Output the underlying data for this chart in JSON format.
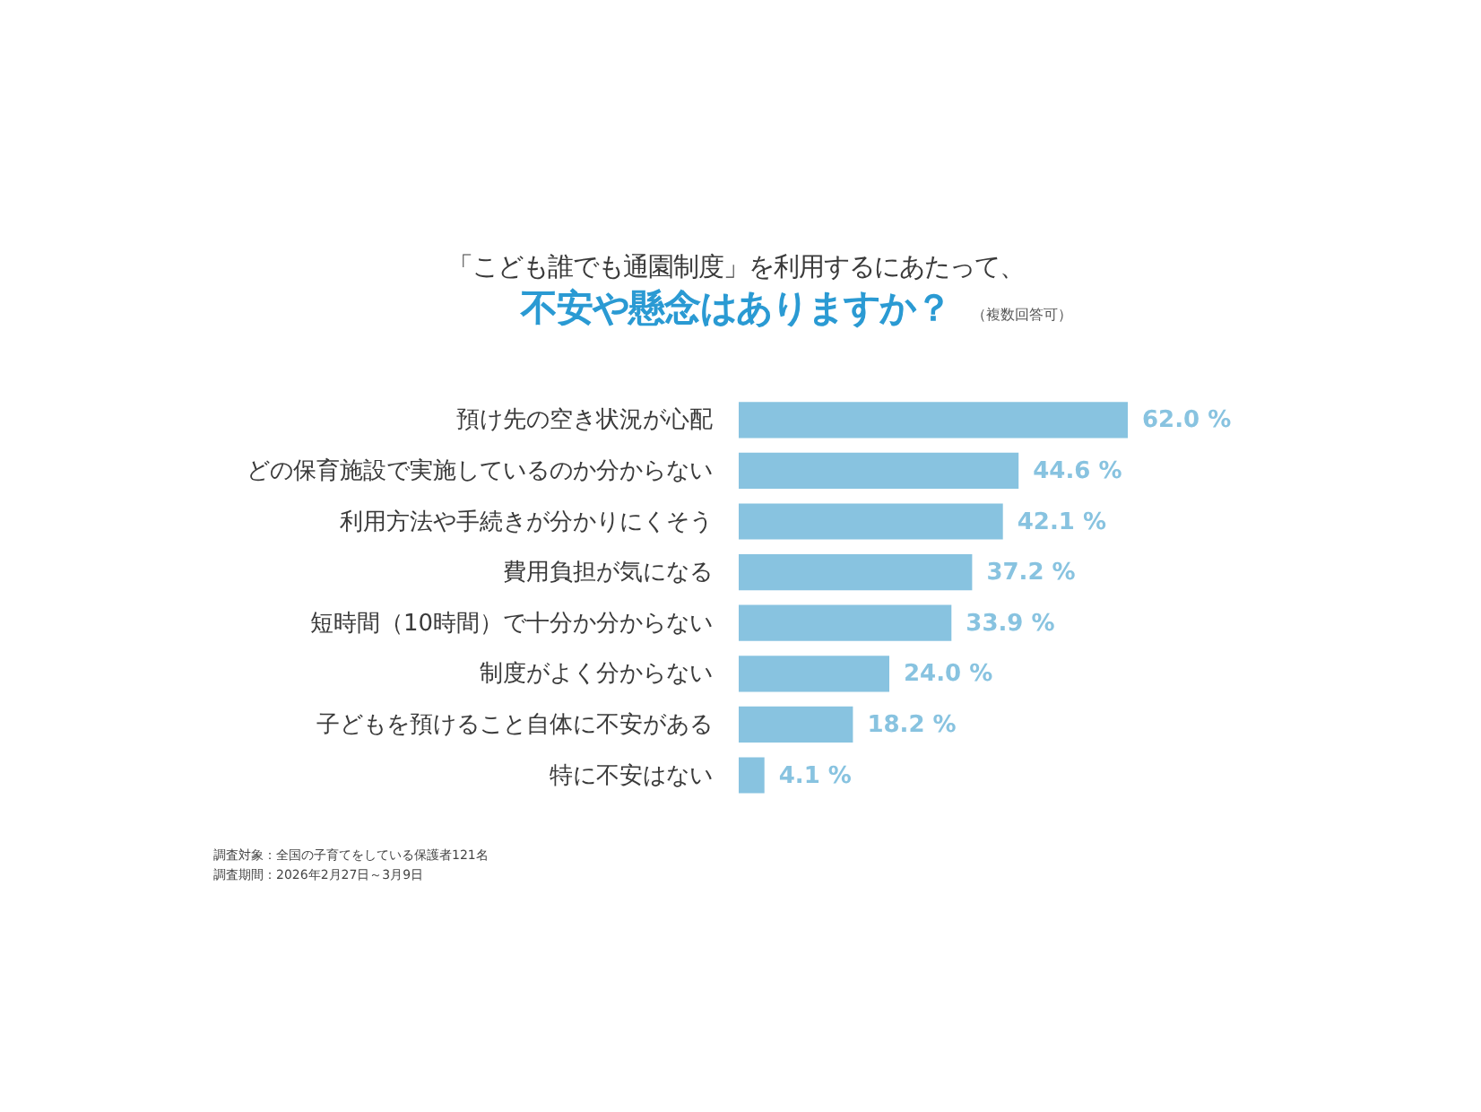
{
  "chart_data": {
    "type": "bar",
    "orientation": "horizontal",
    "title": "「こども誰でも通園制度」を利用するにあたって、",
    "subtitle": "不安や懸念はありますか？",
    "categories": [
      "預け先の空き状況が心配",
      "どの保育施設で実施しているのか分からない",
      "利用方法や手続きが分かりにくそう",
      "費用負担が気になる",
      "短時間（10時間）で十分か分からない",
      "制度がよく分からない",
      "子どもを預けること自体に不安がある",
      "特に不安はない"
    ],
    "values": [
      62.0,
      44.6,
      42.1,
      37.2,
      33.9,
      24.0,
      18.2,
      4.1
    ],
    "value_labels": [
      "62.0 %",
      "44.6 %",
      "42.1 %",
      "37.2 %",
      "33.9 %",
      "24.0 %",
      "18.2 %",
      "4.1 %"
    ],
    "color": "#88c3e0",
    "tick_labels": "y",
    "annotations": [
      "（複数回答可）",
      "調査対象：全国の子育てをしている保護者121名",
      "調査期間：2026年2月27日～3月9日"
    ]
  }
}
